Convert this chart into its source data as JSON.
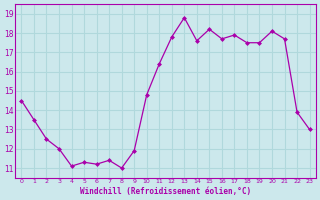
{
  "x": [
    0,
    1,
    2,
    3,
    4,
    5,
    6,
    7,
    8,
    9,
    10,
    11,
    12,
    13,
    14,
    15,
    16,
    17,
    18,
    19,
    20,
    21,
    22,
    23
  ],
  "y": [
    14.5,
    13.5,
    12.5,
    12.0,
    11.1,
    11.3,
    11.2,
    11.4,
    11.0,
    11.9,
    14.8,
    16.4,
    17.8,
    18.8,
    17.6,
    18.2,
    17.7,
    17.9,
    17.5,
    17.5,
    18.1,
    17.7,
    13.9,
    13.0
  ],
  "line_color": "#aa00aa",
  "marker": "D",
  "marker_size": 2.5,
  "bg_color": "#cce8ec",
  "grid_color": "#b0d8dc",
  "xlabel": "Windchill (Refroidissement éolien,°C)",
  "xlabel_color": "#aa00aa",
  "tick_color": "#aa00aa",
  "spine_color": "#aa00aa",
  "ylim": [
    10.5,
    19.5
  ],
  "yticks": [
    11,
    12,
    13,
    14,
    15,
    16,
    17,
    18,
    19
  ],
  "xticks": [
    0,
    1,
    2,
    3,
    4,
    5,
    6,
    7,
    8,
    9,
    10,
    11,
    12,
    13,
    14,
    15,
    16,
    17,
    18,
    19,
    20,
    21,
    22,
    23
  ],
  "xlim": [
    -0.5,
    23.5
  ]
}
